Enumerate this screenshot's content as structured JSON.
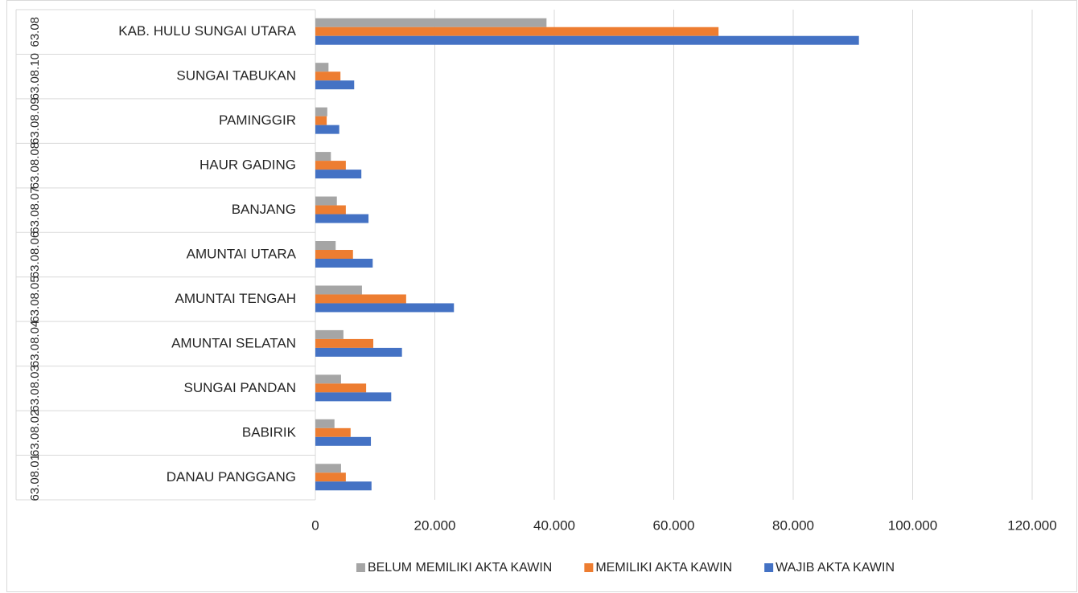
{
  "chart_data": {
    "type": "hbar",
    "groups": [
      "63.08",
      "63.08.10",
      "63.08.09",
      "63.08.08",
      "63.08.07",
      "63.08.06",
      "63.08.05",
      "63.08.04",
      "63.08.03",
      "63.08.02",
      "63.08.01"
    ],
    "categories": [
      "KAB. HULU SUNGAI UTARA",
      "SUNGAI TABUKAN",
      "PAMINGGIR",
      "HAUR GADING",
      "BANJANG",
      "AMUNTAI UTARA",
      "AMUNTAI TENGAH",
      "AMUNTAI SELATAN",
      "SUNGAI PANDAN",
      "BABIRIK",
      "DANAU PANGGANG"
    ],
    "series": [
      {
        "name": "BELUM MEMILIKI AKTA KAWIN",
        "color": "#a5a5a5",
        "values": [
          38700,
          2200,
          2000,
          2600,
          3600,
          3400,
          7800,
          4700,
          4300,
          3200,
          4300
        ]
      },
      {
        "name": "MEMILIKI AKTA KAWIN",
        "color": "#ed7d31",
        "values": [
          67500,
          4200,
          1900,
          5100,
          5100,
          6300,
          15200,
          9700,
          8500,
          5900,
          5100
        ]
      },
      {
        "name": "WAJIB AKTA KAWIN",
        "color": "#4472c4",
        "values": [
          91000,
          6500,
          4000,
          7700,
          8900,
          9600,
          23200,
          14500,
          12700,
          9300,
          9400
        ]
      }
    ],
    "xlim": [
      0,
      120000
    ],
    "xticks": [
      0,
      {
        "value": 20000,
        "label": "20.000"
      },
      {
        "value": 40000,
        "label": "40.000"
      },
      {
        "value": 60000,
        "label": "60.000"
      },
      {
        "value": 80000,
        "label": "80.000"
      },
      {
        "value": 100000,
        "label": "100.000"
      },
      {
        "value": 120000,
        "label": "120.000"
      }
    ],
    "grid": true,
    "legend": "bottom"
  }
}
